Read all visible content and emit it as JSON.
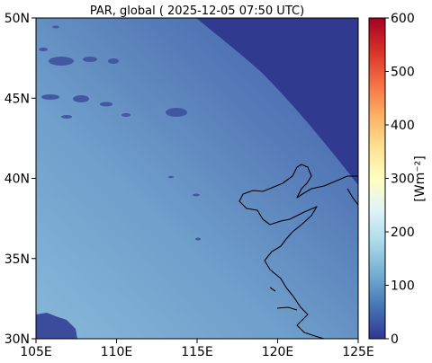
{
  "title": "PAR, global ( 2025-12-05 07:50 UTC)",
  "map": {
    "lon_range": [
      105,
      125
    ],
    "lat_range": [
      30,
      50
    ],
    "x_ticks": [
      "105E",
      "110E",
      "115E",
      "120E",
      "125E"
    ],
    "y_ticks": [
      "30N",
      "35N",
      "40N",
      "45N",
      "50N"
    ]
  },
  "colorbar": {
    "label": "[Wm⁻²]",
    "range": [
      0,
      600
    ],
    "ticks": [
      "0",
      "100",
      "200",
      "300",
      "400",
      "500",
      "600"
    ],
    "colormap": "RdYlBu_r",
    "stops": [
      "#313695",
      "#4575b4",
      "#74add1",
      "#abd9e9",
      "#e0f3f8",
      "#ffffbf",
      "#fee090",
      "#fdae61",
      "#f46d43",
      "#d73027",
      "#a50026"
    ]
  },
  "colors": {
    "night_side": "#303b90",
    "field_low": "#4a6aae",
    "field_high": "#7ba7cf",
    "coastline": "#000000"
  }
}
